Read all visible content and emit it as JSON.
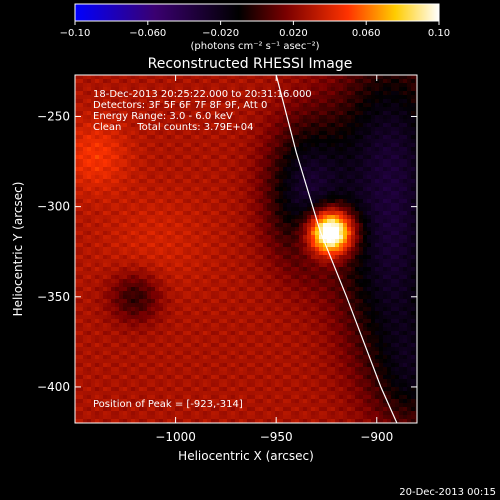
{
  "chart_data": {
    "type": "heatmap",
    "title": "Reconstructed RHESSI Image",
    "xlabel": "Heliocentric X (arcsec)",
    "ylabel": "Heliocentric Y (arcsec)",
    "xlim": [
      -1050,
      -880
    ],
    "ylim": [
      -420,
      -227
    ],
    "xticks": [
      -1000,
      -950,
      -900
    ],
    "xtick_labels": [
      "−1000",
      "−950",
      "−900"
    ],
    "yticks": [
      -400,
      -350,
      -300,
      -250
    ],
    "ytick_labels": [
      "−400",
      "−350",
      "−300",
      "−250"
    ],
    "colorbar": {
      "range": [
        -0.1,
        0.1
      ],
      "ticks": [
        -0.1,
        -0.06,
        -0.02,
        0.02,
        0.06,
        0.1
      ],
      "tick_labels": [
        "−0.10",
        "−0.060",
        "−0.020",
        "0.020",
        "0.060",
        "0.10"
      ],
      "unit_label": "(photons cm⁻² s⁻¹ asec⁻²)",
      "colors": [
        "#0000ff",
        "#3a0070",
        "#000000",
        "#7a0000",
        "#ff3300",
        "#ffcc00",
        "#ffffff"
      ]
    },
    "annotations": [
      "18-Dec-2013 20:25:22.000 to 20:31:16.000",
      "Detectors: 3F 5F 6F 7F 8F 9F, Att 0",
      "Energy Range: 3.0 - 6.0 keV",
      "Clean     Total counts: 3.79E+04"
    ],
    "peak_label": "Position of Peak = [-923,-314]",
    "peak": [
      -923,
      -314
    ],
    "limb_curve": [
      [
        -950,
        -227
      ],
      [
        -940,
        -270
      ],
      [
        -928,
        -314
      ],
      [
        -915,
        -350
      ],
      [
        -898,
        -400
      ],
      [
        -890,
        -420
      ]
    ],
    "limb_color": "#ffffff"
  },
  "footer": {
    "timestamp": "20-Dec-2013 00:15"
  }
}
